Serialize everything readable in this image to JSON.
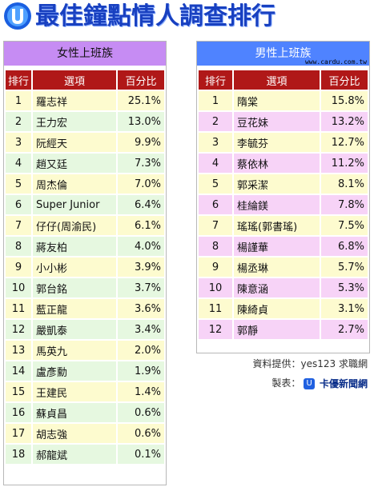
{
  "title": "最佳鐘點情人調查排行",
  "colors": {
    "title": "#1840c0",
    "female_header": "#c68cf3",
    "male_header": "#4f83ff",
    "column_header": "#b01818"
  },
  "columns": {
    "rank": "排行",
    "name": "選項",
    "pct": "百分比"
  },
  "female": {
    "header": "女性上班族",
    "rows": [
      {
        "rank": "1",
        "name": "羅志祥",
        "pct": "25.1%"
      },
      {
        "rank": "2",
        "name": "王力宏",
        "pct": "13.0%"
      },
      {
        "rank": "3",
        "name": "阮經天",
        "pct": "9.9%"
      },
      {
        "rank": "4",
        "name": "趙又廷",
        "pct": "7.3%"
      },
      {
        "rank": "5",
        "name": "周杰倫",
        "pct": "7.0%"
      },
      {
        "rank": "6",
        "name": "Super Junior",
        "pct": "6.4%"
      },
      {
        "rank": "7",
        "name": "仔仔(周渝民)",
        "pct": "6.1%"
      },
      {
        "rank": "8",
        "name": "蔣友柏",
        "pct": "4.0%"
      },
      {
        "rank": "9",
        "name": "小小彬",
        "pct": "3.9%"
      },
      {
        "rank": "10",
        "name": "郭台銘",
        "pct": "3.7%"
      },
      {
        "rank": "11",
        "name": "藍正龍",
        "pct": "3.6%"
      },
      {
        "rank": "12",
        "name": "嚴凱泰",
        "pct": "3.4%"
      },
      {
        "rank": "13",
        "name": "馬英九",
        "pct": "2.0%"
      },
      {
        "rank": "14",
        "name": "盧彥勳",
        "pct": "1.9%"
      },
      {
        "rank": "15",
        "name": "王建民",
        "pct": "1.4%"
      },
      {
        "rank": "16",
        "name": "蘇貞昌",
        "pct": "0.6%"
      },
      {
        "rank": "17",
        "name": "胡志強",
        "pct": "0.6%"
      },
      {
        "rank": "18",
        "name": "郝龍斌",
        "pct": "0.1%"
      }
    ]
  },
  "male": {
    "header": "男性上班族",
    "watermark": "www.cardu.com.tw",
    "rows": [
      {
        "rank": "1",
        "name": "隋棠",
        "pct": "15.8%"
      },
      {
        "rank": "2",
        "name": "豆花妹",
        "pct": "13.2%"
      },
      {
        "rank": "3",
        "name": "李毓芬",
        "pct": "12.7%"
      },
      {
        "rank": "4",
        "name": "蔡依林",
        "pct": "11.2%"
      },
      {
        "rank": "5",
        "name": "郭采潔",
        "pct": "8.1%"
      },
      {
        "rank": "6",
        "name": "桂綸鎂",
        "pct": "7.8%"
      },
      {
        "rank": "7",
        "name": "瑤瑤(郭書瑤)",
        "pct": "7.5%"
      },
      {
        "rank": "8",
        "name": "楊謹華",
        "pct": "6.8%"
      },
      {
        "rank": "9",
        "name": "楊丞琳",
        "pct": "5.7%"
      },
      {
        "rank": "10",
        "name": "陳意涵",
        "pct": "5.3%"
      },
      {
        "rank": "11",
        "name": "陳綺貞",
        "pct": "3.1%"
      },
      {
        "rank": "12",
        "name": "郭靜",
        "pct": "2.7%"
      }
    ]
  },
  "credits": {
    "source": "資料提供：yes123 求職網",
    "maker_label": "製表：",
    "maker_name": "卡優新聞網"
  }
}
